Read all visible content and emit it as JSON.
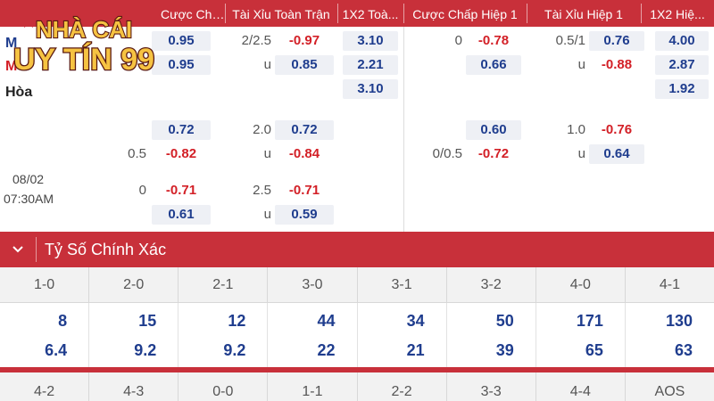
{
  "header": {
    "cols": [
      "Cược Chấp Toàn ...",
      "Tài Xỉu Toàn Trận",
      "1X2 Toà...",
      "Cược Chấp Hiệp 1",
      "Tài Xỉu Hiệp 1",
      "1X2 Hiệ..."
    ]
  },
  "logo": {
    "line1": "NHÀ CÁI",
    "line2": "UY TÍN 99"
  },
  "match1": {
    "team_home": "M",
    "team_away": "M",
    "draw": "Hòa",
    "ft_hdp_home": "0.95",
    "ft_hdp_away": "0.95",
    "ft_ou_line": "2/2.5",
    "ft_ou_over": "-0.97",
    "ft_ou_u": "u",
    "ft_ou_under": "0.85",
    "ft_1x2": [
      "3.10",
      "2.21",
      "3.10"
    ],
    "h1_hdp_line": "0",
    "h1_hdp_home": "-0.78",
    "h1_hdp_away": "0.66",
    "h1_ou_line": "0.5/1",
    "h1_ou_over": "0.76",
    "h1_ou_u": "u",
    "h1_ou_under": "-0.88",
    "h1_1x2": [
      "4.00",
      "2.87",
      "1.92"
    ]
  },
  "match2": {
    "date": "08/02",
    "time": "07:30AM",
    "r1": {
      "hdp_val": "0.72",
      "ou_line": "2.0",
      "ou_val": "0.72",
      "h1_hdp_val": "0.60",
      "h1_ou_line": "1.0",
      "h1_ou_val": "-0.76"
    },
    "r2": {
      "hdp_line": "0.5",
      "hdp_val": "-0.82",
      "ou_u": "u",
      "ou_val": "-0.84",
      "h1_hdp_line": "0/0.5",
      "h1_hdp_val": "-0.72",
      "h1_ou_u": "u",
      "h1_ou_val": "0.64"
    },
    "r3": {
      "hdp_line": "0",
      "hdp_val": "-0.71",
      "ou_line": "2.5",
      "ou_val": "-0.71"
    },
    "r4": {
      "hdp_val": "0.61",
      "ou_u": "u",
      "ou_val": "0.59"
    }
  },
  "correct_score": {
    "title": "Tỷ Số Chính Xác",
    "scores": [
      "1-0",
      "2-0",
      "2-1",
      "3-0",
      "3-1",
      "3-2",
      "4-0",
      "4-1"
    ],
    "home_odds": [
      "8",
      "15",
      "12",
      "44",
      "34",
      "50",
      "171",
      "130"
    ],
    "draw_odds": [
      "6.4",
      "9.2",
      "9.2",
      "22",
      "21",
      "39",
      "65",
      "63"
    ],
    "scores_row2": [
      "4-2",
      "4-3",
      "0-0",
      "1-1",
      "2-2",
      "3-3",
      "4-4",
      "AOS"
    ]
  },
  "colors": {
    "header_red": "#c8303a",
    "odds_blue": "#1f3d8e",
    "odds_red": "#d32027"
  }
}
